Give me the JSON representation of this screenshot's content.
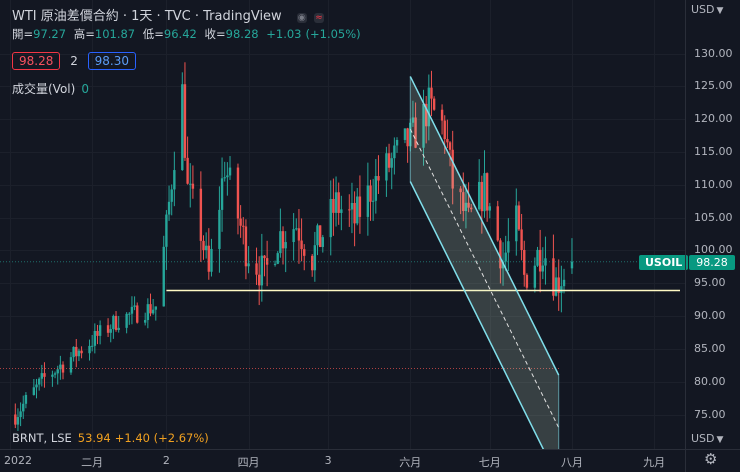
{
  "legend": {
    "symbol": "WTI 原油差價合約 · 1天 · TVC · TradingView",
    "ohlc": [
      {
        "label": "開=",
        "value": "97.27"
      },
      {
        "label": "高=",
        "value": "101.87"
      },
      {
        "label": "低=",
        "value": "96.42"
      },
      {
        "label": "收=",
        "value": "98.28"
      },
      {
        "label": "",
        "value": "+1.03"
      },
      {
        "label": "",
        "value": "(+1.05%)"
      }
    ],
    "sell_price": "98.28",
    "spread": "2",
    "buy_price": "98.30",
    "volume_label": "成交量(Vol)",
    "volume_value": "0",
    "compare_symbol": "BRNT, LSE",
    "compare_price": "53.94",
    "compare_change": "+1.40 (+2.67%)"
  },
  "price_axis": {
    "currency_top": "USD",
    "currency_bottom": "USD",
    "ticks": [
      "130.00",
      "125.00",
      "120.00",
      "115.00",
      "110.00",
      "105.00",
      "100.00",
      "95.00",
      "90.00",
      "85.00",
      "80.00",
      "75.00"
    ],
    "last_symbol": "USOIL",
    "last_price": "98.28"
  },
  "time_axis": {
    "labels": [
      "2022",
      "二月",
      "2",
      "四月",
      "3",
      "六月",
      "七月",
      "八月",
      "九月"
    ]
  },
  "colors": {
    "background": "#131722",
    "up": "#26a69a",
    "down": "#ef5350",
    "support_line": "#fff9c4",
    "channel": "#80deea",
    "last_price": "#089981"
  },
  "icons": {
    "badge_1": "eye-off-icon",
    "badge_2": "approximately-icon",
    "corner": "gear-icon"
  },
  "chart_data": {
    "type": "candlestick",
    "y_range": [
      73.0,
      131.0
    ],
    "x_range": [
      "2022-01-01",
      "2022-09-10"
    ],
    "support_level": 93.9,
    "channel": {
      "start": [
        "2022-06-01",
        126.5
      ],
      "end": [
        "2022-07-27",
        81.0
      ],
      "offset": -16.0
    },
    "anchors": [
      [
        "2022-01-03",
        75.0
      ],
      [
        "2022-01-14",
        80.5
      ],
      [
        "2022-01-28",
        85.0
      ],
      [
        "2022-02-11",
        89.5
      ],
      [
        "2022-02-25",
        91.5
      ],
      [
        "2022-03-01",
        103.0
      ],
      [
        "2022-03-04",
        115.0
      ],
      [
        "2022-03-07",
        124.0
      ],
      [
        "2022-03-09",
        109.0
      ],
      [
        "2022-03-14",
        103.0
      ],
      [
        "2022-03-17",
        96.0
      ],
      [
        "2022-03-23",
        113.0
      ],
      [
        "2022-03-31",
        100.5
      ],
      [
        "2022-04-07",
        96.0
      ],
      [
        "2022-04-12",
        102.0
      ],
      [
        "2022-04-19",
        104.0
      ],
      [
        "2022-04-25",
        99.0
      ],
      [
        "2022-05-04",
        107.0
      ],
      [
        "2022-05-11",
        104.5
      ],
      [
        "2022-05-18",
        110.0
      ],
      [
        "2022-05-27",
        114.5
      ],
      [
        "2022-06-03",
        118.0
      ],
      [
        "2022-06-08",
        122.0
      ],
      [
        "2022-06-14",
        118.5
      ],
      [
        "2022-06-17",
        110.0
      ],
      [
        "2022-06-23",
        104.0
      ],
      [
        "2022-06-29",
        109.5
      ],
      [
        "2022-07-06",
        98.5
      ],
      [
        "2022-07-11",
        104.0
      ],
      [
        "2022-07-14",
        96.0
      ],
      [
        "2022-07-21",
        100.5
      ],
      [
        "2022-07-26",
        95.0
      ],
      [
        "2022-08-01",
        98.28
      ]
    ]
  }
}
